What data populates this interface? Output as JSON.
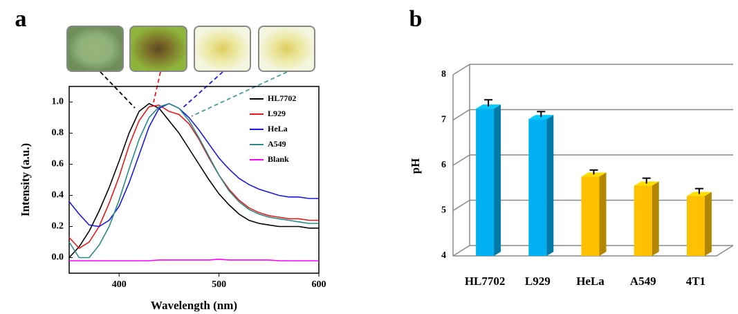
{
  "chart_data": [
    {
      "type": "line",
      "panel_label": "a",
      "xlabel": "Wavelength (nm)",
      "ylabel": "Intensity (a.u.)",
      "x": [
        350,
        360,
        370,
        380,
        390,
        400,
        410,
        420,
        430,
        440,
        450,
        460,
        470,
        480,
        490,
        500,
        510,
        520,
        530,
        540,
        550,
        560,
        570,
        580,
        590,
        600
      ],
      "xlim": [
        350,
        600
      ],
      "xticks": [
        400,
        500,
        600
      ],
      "ylim": [
        -0.1,
        1.1
      ],
      "yticks": [
        {
          "value": 0,
          "label": "0.0"
        },
        0.2,
        0.4,
        0.6,
        0.8,
        {
          "value": 1,
          "label": "1.0"
        }
      ],
      "legend": "upper right",
      "series": [
        {
          "name": "HL7702",
          "color": "#000000",
          "values": [
            0.0,
            0.07,
            0.17,
            0.3,
            0.45,
            0.62,
            0.8,
            0.94,
            0.99,
            0.96,
            0.88,
            0.8,
            0.7,
            0.6,
            0.5,
            0.41,
            0.34,
            0.28,
            0.24,
            0.22,
            0.21,
            0.2,
            0.2,
            0.2,
            0.19,
            0.19
          ]
        },
        {
          "name": "L929",
          "color": "#e41a1c",
          "values": [
            0.13,
            0.06,
            0.1,
            0.2,
            0.35,
            0.52,
            0.72,
            0.88,
            0.97,
            0.98,
            0.94,
            0.92,
            0.86,
            0.76,
            0.64,
            0.53,
            0.44,
            0.37,
            0.32,
            0.29,
            0.27,
            0.26,
            0.25,
            0.25,
            0.24,
            0.24
          ]
        },
        {
          "name": "HeLa",
          "color": "#1a1adc",
          "values": [
            0.36,
            0.28,
            0.21,
            0.2,
            0.24,
            0.33,
            0.48,
            0.66,
            0.84,
            0.96,
            0.99,
            0.96,
            0.9,
            0.82,
            0.73,
            0.64,
            0.57,
            0.51,
            0.47,
            0.44,
            0.42,
            0.4,
            0.39,
            0.39,
            0.38,
            0.38
          ]
        },
        {
          "name": "A549",
          "color": "#2a8a87",
          "values": [
            0.1,
            0.0,
            0.0,
            0.08,
            0.2,
            0.37,
            0.57,
            0.76,
            0.9,
            0.97,
            0.99,
            0.96,
            0.88,
            0.77,
            0.65,
            0.53,
            0.43,
            0.36,
            0.31,
            0.28,
            0.26,
            0.25,
            0.24,
            0.23,
            0.22,
            0.22
          ]
        },
        {
          "name": "Blank",
          "color": "#ff00ff",
          "values": [
            -0.02,
            -0.02,
            -0.02,
            -0.02,
            -0.02,
            -0.02,
            -0.02,
            -0.02,
            -0.02,
            -0.015,
            -0.015,
            -0.015,
            -0.015,
            -0.015,
            -0.015,
            -0.01,
            -0.015,
            -0.015,
            -0.015,
            -0.015,
            -0.015,
            -0.02,
            -0.02,
            -0.02,
            -0.02,
            -0.02
          ]
        }
      ]
    },
    {
      "type": "bar",
      "panel_label": "b",
      "ylabel": "pH",
      "categories": [
        "HL7702",
        "L929",
        "HeLa",
        "A549",
        "4T1"
      ],
      "values": [
        7.25,
        7.02,
        5.75,
        5.55,
        5.32
      ],
      "errors": [
        0.15,
        0.12,
        0.1,
        0.12,
        0.12
      ],
      "colors": [
        "#00b0f0",
        "#00b0f0",
        "#ffc000",
        "#ffc000",
        "#ffc000"
      ],
      "ylim": [
        4,
        8
      ],
      "yticks": [
        4,
        5,
        6,
        7,
        8
      ],
      "grid": true
    }
  ]
}
